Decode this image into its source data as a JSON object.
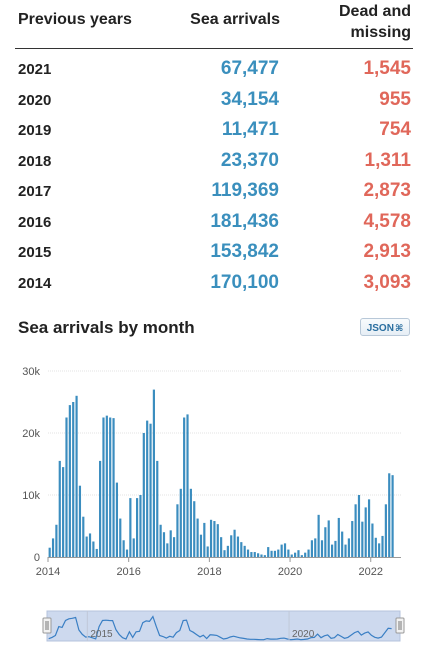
{
  "table": {
    "headers": {
      "year": "Previous years",
      "arrivals": "Sea arrivals",
      "dead": "Dead and missing"
    },
    "rows": [
      {
        "year": "2021",
        "arrivals": "67,477",
        "dead": "1,545"
      },
      {
        "year": "2020",
        "arrivals": "34,154",
        "dead": "955"
      },
      {
        "year": "2019",
        "arrivals": "11,471",
        "dead": "754"
      },
      {
        "year": "2018",
        "arrivals": "23,370",
        "dead": "1,311"
      },
      {
        "year": "2017",
        "arrivals": "119,369",
        "dead": "2,873"
      },
      {
        "year": "2016",
        "arrivals": "181,436",
        "dead": "4,578"
      },
      {
        "year": "2015",
        "arrivals": "153,842",
        "dead": "2,913"
      },
      {
        "year": "2014",
        "arrivals": "170,100",
        "dead": "3,093"
      }
    ]
  },
  "json_button": {
    "label": "JSON",
    "icon": "rss-icon"
  },
  "colors": {
    "arrivals": "#3a8fbd",
    "dead": "#e0675a",
    "bar": "#3b8dbf",
    "navigator_fill": "#cdd9ee"
  },
  "chart_data": {
    "type": "bar",
    "title": "Sea arrivals by month",
    "xlabel": "",
    "ylabel": "",
    "ylim": [
      0,
      30000
    ],
    "y_ticks": [
      0,
      10000,
      20000,
      30000
    ],
    "y_tick_labels": [
      "0",
      "10k",
      "20k",
      "30k"
    ],
    "x_ticks": [
      "2014",
      "2016",
      "2018",
      "2020",
      "2022"
    ],
    "navigator_labels": [
      "2015",
      "2020"
    ],
    "x_start": "2014-01",
    "x": [
      "2014-01",
      "2014-02",
      "2014-03",
      "2014-04",
      "2014-05",
      "2014-06",
      "2014-07",
      "2014-08",
      "2014-09",
      "2014-10",
      "2014-11",
      "2014-12",
      "2015-01",
      "2015-02",
      "2015-03",
      "2015-04",
      "2015-05",
      "2015-06",
      "2015-07",
      "2015-08",
      "2015-09",
      "2015-10",
      "2015-11",
      "2015-12",
      "2016-01",
      "2016-02",
      "2016-03",
      "2016-04",
      "2016-05",
      "2016-06",
      "2016-07",
      "2016-08",
      "2016-09",
      "2016-10",
      "2016-11",
      "2016-12",
      "2017-01",
      "2017-02",
      "2017-03",
      "2017-04",
      "2017-05",
      "2017-06",
      "2017-07",
      "2017-08",
      "2017-09",
      "2017-10",
      "2017-11",
      "2017-12",
      "2018-01",
      "2018-02",
      "2018-03",
      "2018-04",
      "2018-05",
      "2018-06",
      "2018-07",
      "2018-08",
      "2018-09",
      "2018-10",
      "2018-11",
      "2018-12",
      "2019-01",
      "2019-02",
      "2019-03",
      "2019-04",
      "2019-05",
      "2019-06",
      "2019-07",
      "2019-08",
      "2019-09",
      "2019-10",
      "2019-11",
      "2019-12",
      "2020-01",
      "2020-02",
      "2020-03",
      "2020-04",
      "2020-05",
      "2020-06",
      "2020-07",
      "2020-08",
      "2020-09",
      "2020-10",
      "2020-11",
      "2020-12",
      "2021-01",
      "2021-02",
      "2021-03",
      "2021-04",
      "2021-05",
      "2021-06",
      "2021-07",
      "2021-08",
      "2021-09",
      "2021-10",
      "2021-11",
      "2021-12",
      "2022-01",
      "2022-02",
      "2022-03",
      "2022-04",
      "2022-05",
      "2022-06",
      "2022-07"
    ],
    "values": [
      1500,
      3000,
      5200,
      15500,
      14500,
      22500,
      24500,
      25000,
      26000,
      11500,
      6500,
      3300,
      3800,
      2500,
      1300,
      15500,
      22500,
      22800,
      22500,
      22400,
      12000,
      6200,
      2700,
      1200,
      9500,
      3000,
      9500,
      10000,
      20000,
      22000,
      21500,
      27000,
      15500,
      5200,
      4000,
      2200,
      4300,
      3200,
      8500,
      11000,
      22500,
      23000,
      11000,
      9000,
      6200,
      3600,
      5500,
      1700,
      6000,
      5800,
      5300,
      3200,
      1100,
      1800,
      3500,
      4400,
      3300,
      2400,
      1800,
      1200,
      800,
      800,
      600,
      400,
      300,
      1600,
      1000,
      1000,
      1200,
      2000,
      2200,
      1200,
      400,
      700,
      1100,
      300,
      700,
      1200,
      2700,
      3000,
      6800,
      2700,
      4800,
      5900,
      2000,
      2600,
      6300,
      4100,
      2000,
      3000,
      5800,
      8500,
      10000,
      5700,
      8000,
      9300,
      5400,
      3100,
      2200,
      3400,
      8500,
      13500,
      13200
    ]
  }
}
